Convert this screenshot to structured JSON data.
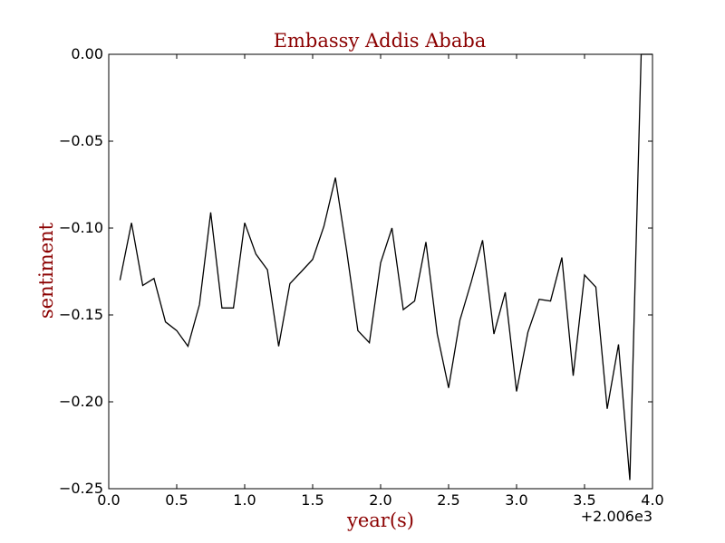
{
  "chart_data": {
    "type": "line",
    "title": "Embassy Addis Ababa",
    "xlabel": "year(s)",
    "ylabel": "sentiment",
    "x_offset_label": "+2.006e3",
    "xlim": [
      0.0,
      4.0
    ],
    "ylim": [
      -0.25,
      0.0
    ],
    "grid": false,
    "x_ticks": [
      "0.0",
      "0.5",
      "1.0",
      "1.5",
      "2.0",
      "2.5",
      "3.0",
      "3.5",
      "4.0"
    ],
    "y_ticks": [
      "0.00",
      "−0.05",
      "−0.10",
      "−0.15",
      "−0.20",
      "−0.25"
    ],
    "x_tick_values": [
      0.0,
      0.5,
      1.0,
      1.5,
      2.0,
      2.5,
      3.0,
      3.5,
      4.0
    ],
    "y_tick_values": [
      0.0,
      -0.05,
      -0.1,
      -0.15,
      -0.2,
      -0.25
    ],
    "line_color": "#000000",
    "series": [
      {
        "x": [
          0.083,
          0.167,
          0.25,
          0.333,
          0.417,
          0.5,
          0.583,
          0.667,
          0.75,
          0.833,
          0.917,
          1.0,
          1.083,
          1.167,
          1.25,
          1.333,
          1.417,
          1.5,
          1.583,
          1.667,
          1.75,
          1.833,
          1.917,
          2.0,
          2.083,
          2.167,
          2.25,
          2.333,
          2.417,
          2.5,
          2.583,
          2.667,
          2.75,
          2.833,
          2.917,
          3.0,
          3.083,
          3.167,
          3.25,
          3.333,
          3.417,
          3.5,
          3.583,
          3.667,
          3.75,
          3.833,
          3.917,
          4.0
        ],
        "values": [
          -0.13,
          -0.097,
          -0.133,
          -0.129,
          -0.154,
          -0.159,
          -0.168,
          -0.144,
          -0.091,
          -0.146,
          -0.146,
          -0.097,
          -0.115,
          -0.124,
          -0.168,
          -0.132,
          -0.125,
          -0.118,
          -0.099,
          -0.071,
          -0.113,
          -0.159,
          -0.166,
          -0.12,
          -0.1,
          -0.147,
          -0.142,
          -0.108,
          -0.161,
          -0.192,
          -0.153,
          -0.131,
          -0.107,
          -0.161,
          -0.137,
          -0.194,
          -0.16,
          -0.141,
          -0.142,
          -0.117,
          -0.185,
          -0.127,
          -0.134,
          -0.204,
          -0.167,
          -0.245,
          0.0,
          0.0
        ]
      }
    ]
  }
}
